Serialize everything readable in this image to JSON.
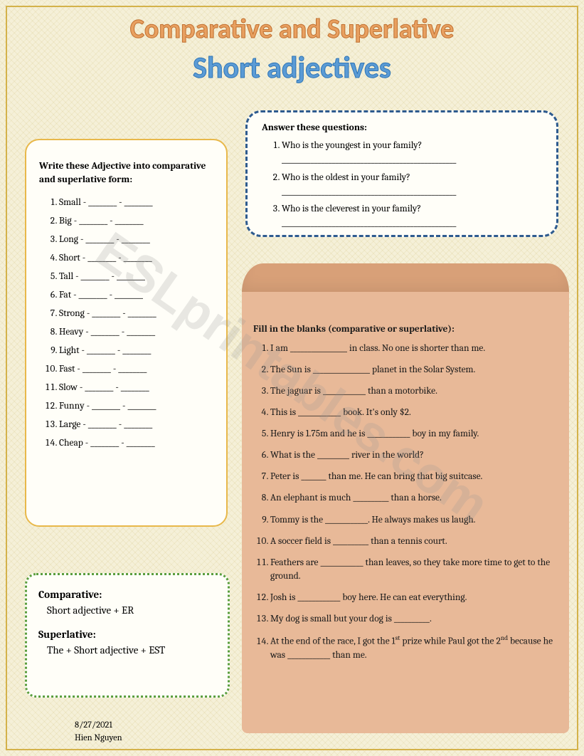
{
  "titles": {
    "main": "Comparative and Superlative",
    "sub": "Short adjectives"
  },
  "watermark": "ESLprintables.com",
  "colors": {
    "background": "#f5f0d8",
    "page_border": "#d4b24a",
    "title1_fill": "#e8a060",
    "title1_stroke": "#c07030",
    "title2_fill": "#5b9bd5",
    "title2_stroke": "#2e75b6",
    "left_box_border": "#e8b84a",
    "questions_border": "#2e5b8f",
    "rules_border": "#5a9e3e",
    "scroll_bg": "#e8b998",
    "scroll_curl": "#d8a078",
    "box_bg": "#fffef8"
  },
  "left_box": {
    "heading": "Write these Adjective into comparative and superlative form:",
    "items": [
      "Small - ________ - ________",
      "Big - ________ - ________",
      "Long - ________ - ________",
      "Short - ________ - ________",
      "Tall - ________ - ________",
      "Fat - ________ - ________",
      "Strong - ________ - ________",
      "Heavy - ________ - ________",
      "Light - ________ - ________",
      "Fast - ________ - ________",
      "Slow - ________ - ________",
      "Funny - ________ - ________",
      "Large - ________ - ________",
      "Cheap - ________ - ________"
    ]
  },
  "questions_box": {
    "heading": "Answer these questions:",
    "items": [
      {
        "q": "Who is the youngest in your family?",
        "line": "_________________________________________________"
      },
      {
        "q": "Who is the oldest in your family?",
        "line": "_________________________________________________"
      },
      {
        "q": "Who is the cleverest in your family?",
        "line": "_________________________________________________"
      }
    ]
  },
  "fill_box": {
    "heading": "Fill in the blanks (comparative or superlative):",
    "items": [
      "I am ________________ in class. No one is shorter than me.",
      "The Sun is ________________ planet in the Solar System.",
      "The jaguar is ____________ than a motorbike.",
      "This is ____________ book. It's only $2.",
      "Henry is 1.75m and he is ____________ boy in my family.",
      "What is the _________ river in the world?",
      "Peter is _______ than me. He can bring that big suitcase.",
      "An elephant is much __________ than a horse.",
      "Tommy is the ____________. He always makes us laugh.",
      "A soccer field is __________ than a tennis court.",
      "Feathers are ____________ than leaves, so they take more time to get to the ground.",
      "Josh is ____________ boy here. He can eat everything.",
      "My dog is small but your dog is __________."
    ],
    "item14_pre": "At the end of the race, I got the 1",
    "item14_sup1": "st",
    "item14_mid": " prize while Paul got the 2",
    "item14_sup2": "nd",
    "item14_post": " because he was ____________ than me."
  },
  "rules_box": {
    "r1_title": "Comparative:",
    "r1_body": "Short adjective + ER",
    "r2_title": "Superlative:",
    "r2_body": "The + Short adjective + EST"
  },
  "footer": {
    "date": "8/27/2021",
    "author": "Hien Nguyen"
  }
}
